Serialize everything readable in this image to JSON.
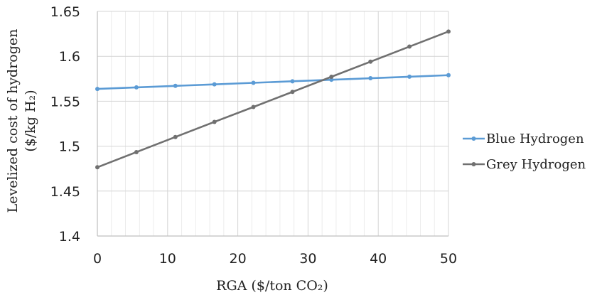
{
  "chart_data": {
    "type": "line",
    "xlabel": "RGA ($/ton CO₂)",
    "ylabel_line1": "Levelized cost of hydrogen",
    "ylabel_line2": "($/kg H₂)",
    "xlim": [
      0,
      50
    ],
    "ylim": [
      1.4,
      1.65
    ],
    "x_ticks": [
      0,
      10,
      20,
      30,
      40,
      50
    ],
    "y_ticks": [
      1.4,
      1.45,
      1.5,
      1.55,
      1.6,
      1.65
    ],
    "x_tick_labels": [
      "0",
      "10",
      "20",
      "30",
      "40",
      "50"
    ],
    "y_tick_labels": [
      "1.4",
      "1.45",
      "1.5",
      "1.55",
      "1.6",
      "1.65"
    ],
    "grid": "major and minor vertical, major horizontal",
    "legend_position": "right",
    "x": [
      0,
      5.56,
      11.11,
      16.67,
      22.22,
      27.78,
      33.33,
      38.89,
      44.44,
      50
    ],
    "series": [
      {
        "name": "Blue Hydrogen",
        "color": "#5b9bd5",
        "values": [
          1.5637,
          1.5654,
          1.5671,
          1.5688,
          1.5705,
          1.5722,
          1.5739,
          1.5756,
          1.5773,
          1.579
        ]
      },
      {
        "name": "Grey Hydrogen",
        "color": "#707070",
        "values": [
          1.4765,
          1.4934,
          1.5102,
          1.527,
          1.5436,
          1.5604,
          1.5772,
          1.594,
          1.6108,
          1.6276
        ]
      }
    ]
  }
}
